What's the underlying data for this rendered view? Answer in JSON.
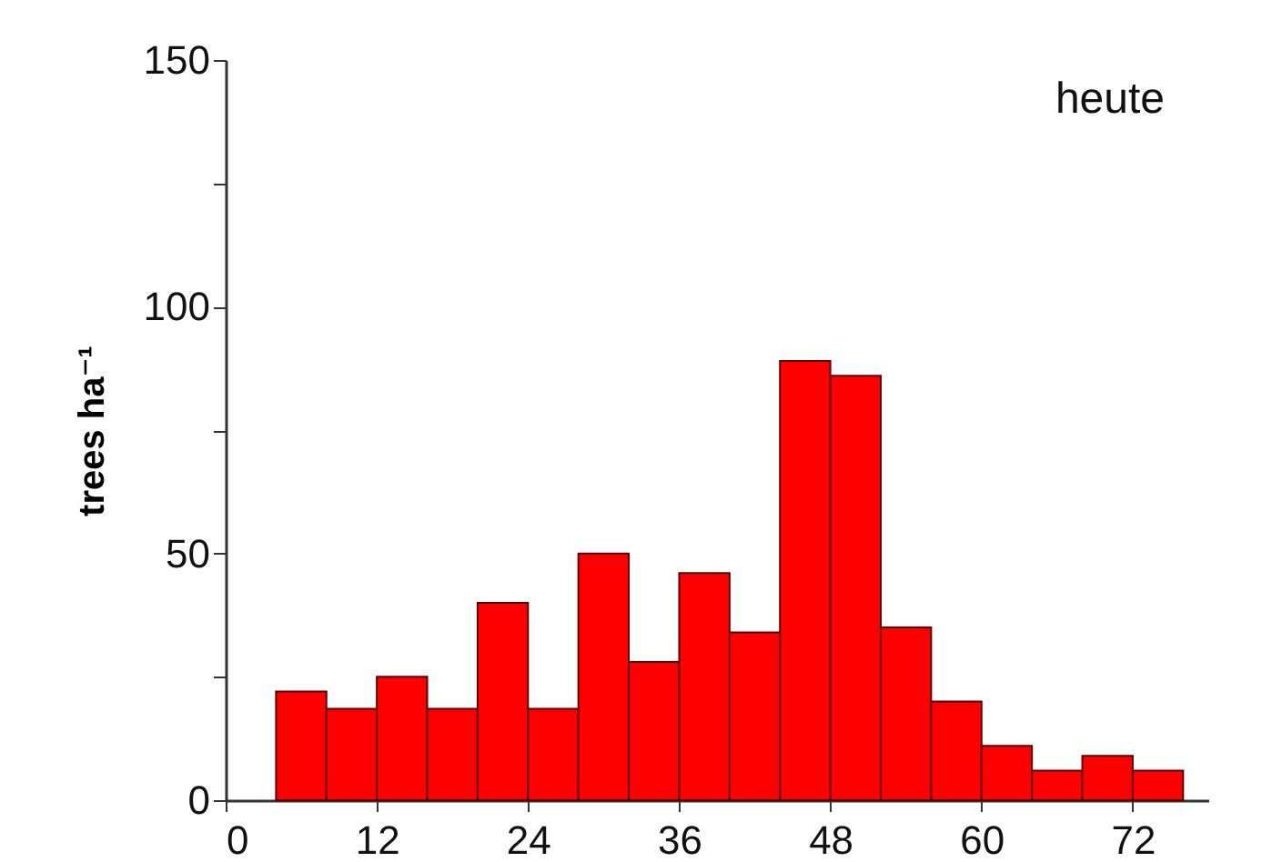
{
  "chart_data": {
    "type": "histogram",
    "bins": [
      4,
      8,
      12,
      16,
      20,
      24,
      28,
      32,
      36,
      40,
      44,
      48,
      52,
      56,
      60,
      64,
      68,
      72,
      76
    ],
    "values": [
      22,
      18.5,
      25,
      18.5,
      40,
      18.5,
      50,
      28,
      46,
      34,
      89,
      86,
      35,
      20,
      11,
      6,
      9,
      6
    ],
    "color": "#ff0000",
    "ylabel": "trees ha⁻¹",
    "annotations": [
      "heute"
    ],
    "xlim": [
      0,
      78
    ],
    "xticks": [
      0,
      12,
      24,
      36,
      48,
      60,
      72
    ],
    "ylim": [
      0,
      150
    ],
    "yticks": [
      0,
      {
        "value": 25,
        "label": null
      },
      50,
      {
        "value": 75,
        "label": null
      },
      100,
      {
        "value": 125,
        "label": null
      },
      150
    ],
    "grid": false
  }
}
